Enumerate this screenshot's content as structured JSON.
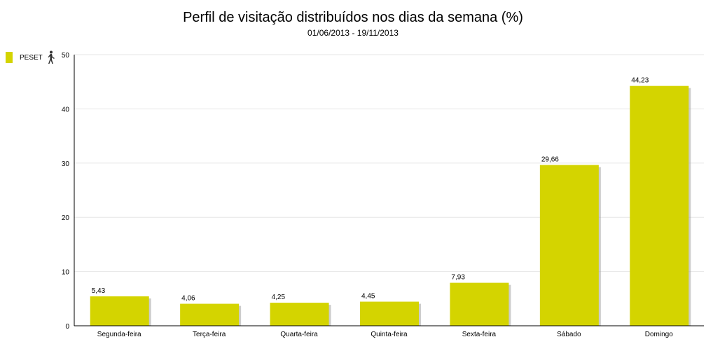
{
  "chart_data": {
    "type": "bar",
    "title": "Perfil de visitação distribuídos nos dias da semana (%)",
    "subtitle": "01/06/2013 - 19/11/2013",
    "categories": [
      "Segunda-feira",
      "Terça-feira",
      "Quarta-feira",
      "Quinta-feira",
      "Sexta-feira",
      "Sábado",
      "Domingo"
    ],
    "series": [
      {
        "name": "PESET",
        "values": [
          5.43,
          4.06,
          4.25,
          4.45,
          7.93,
          29.66,
          44.23
        ],
        "labels": [
          "5,43",
          "4,06",
          "4,25",
          "4,45",
          "7,93",
          "29,66",
          "44,23"
        ],
        "color": "#d4d400"
      }
    ],
    "ylim": [
      0,
      50
    ],
    "yticks": [
      0,
      10,
      20,
      30,
      40,
      50
    ],
    "grid": true,
    "legend_placement": "top-left",
    "xlabel": "",
    "ylabel": ""
  }
}
